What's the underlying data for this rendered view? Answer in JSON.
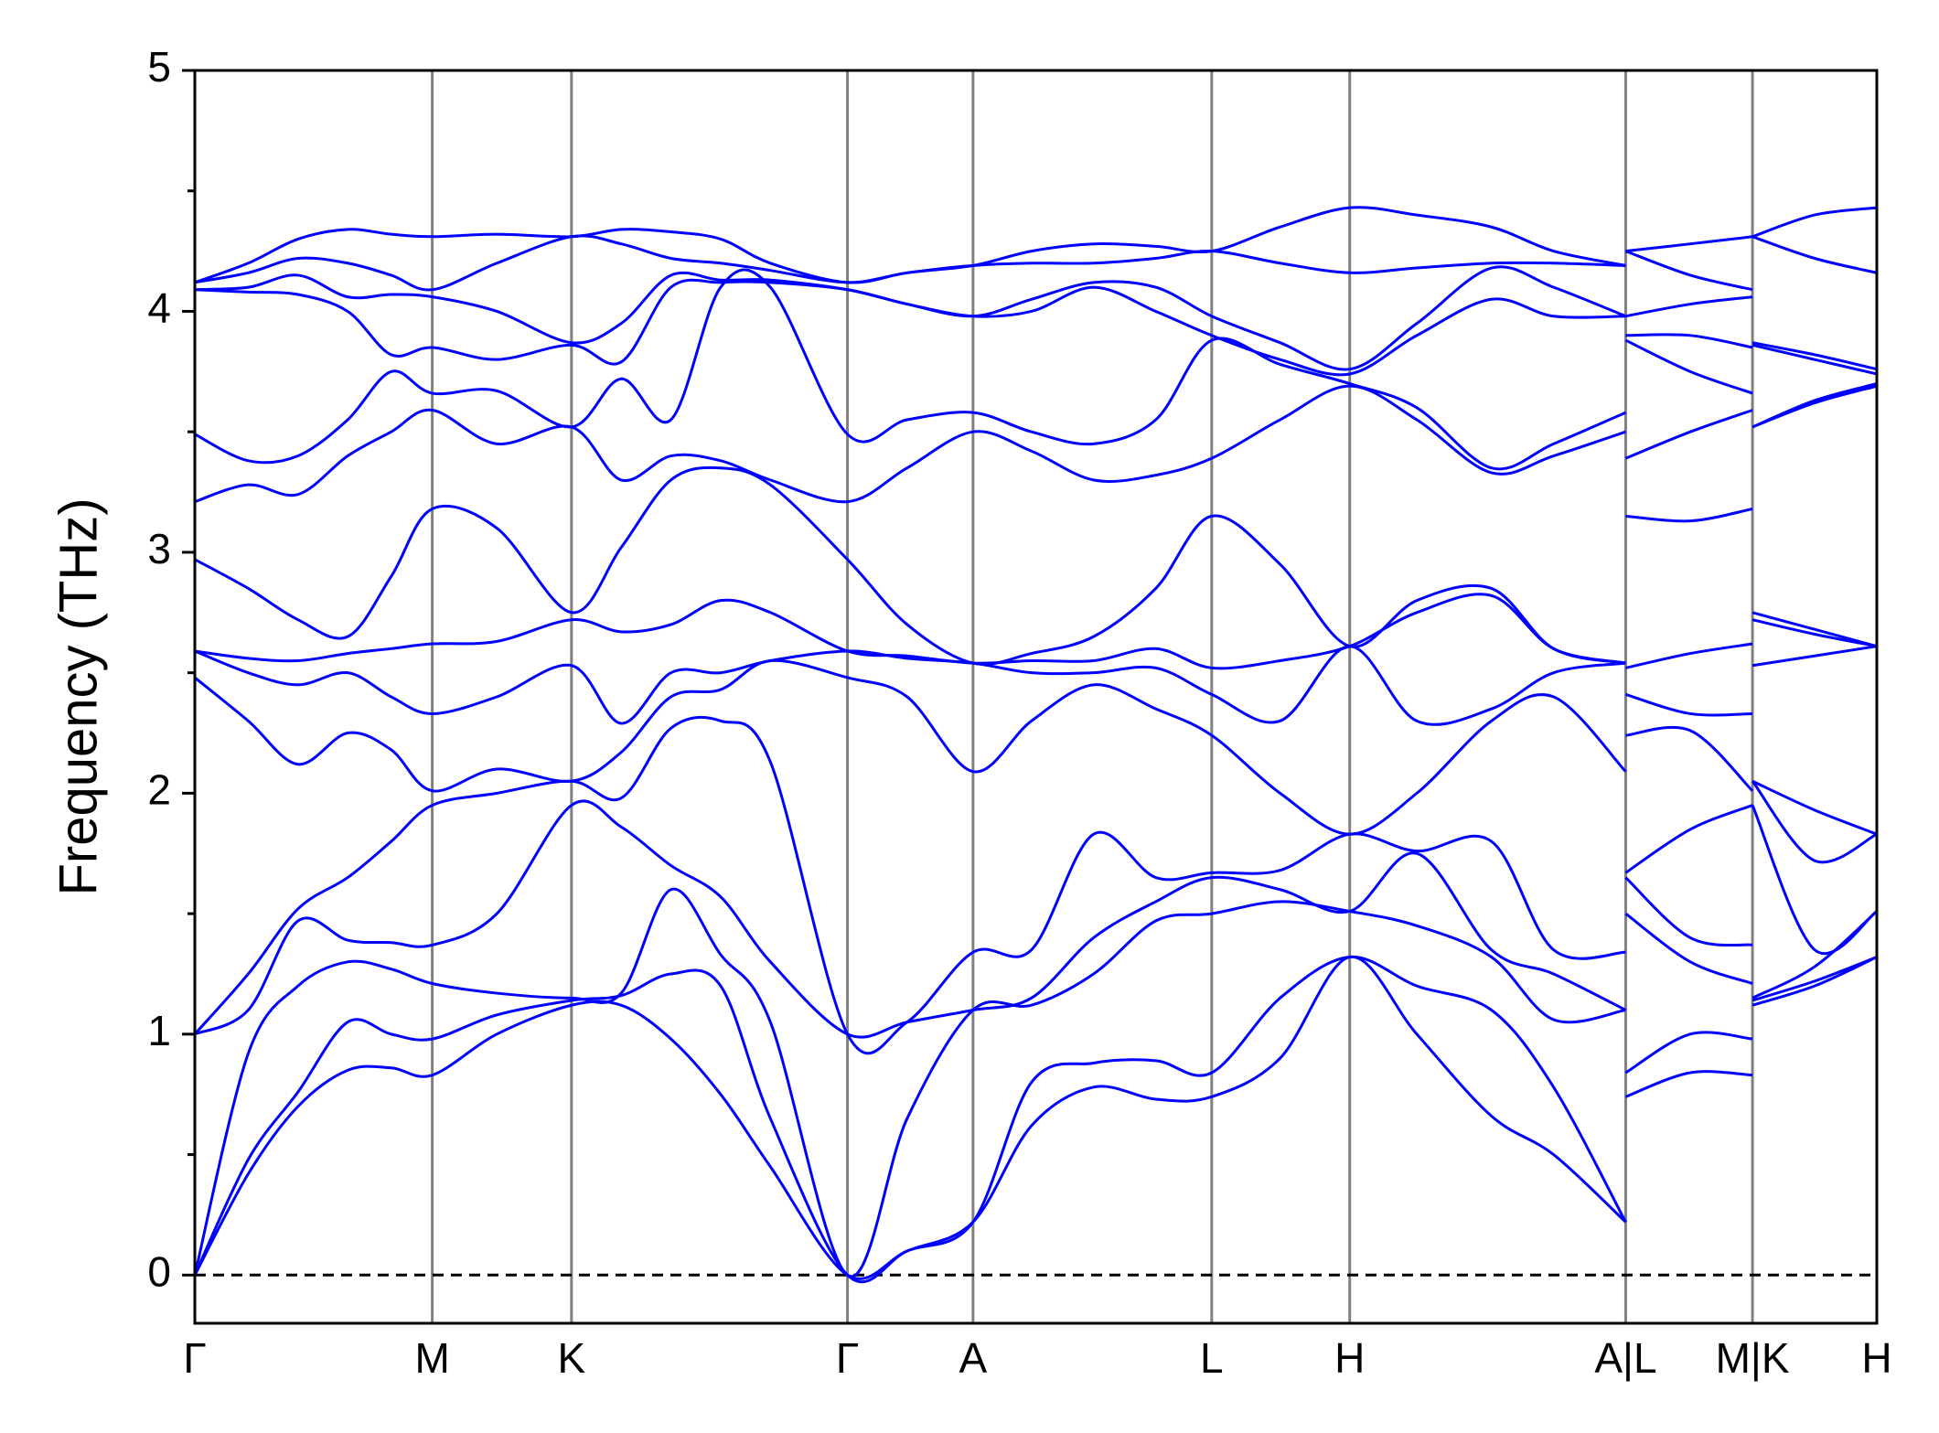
{
  "chart_data": {
    "type": "band",
    "ylabel": "Frequency (THz)",
    "color": "#0000ff",
    "xlim": [
      0,
      13.53
    ],
    "ylim": [
      -0.2,
      5
    ],
    "yticks": [
      0,
      1,
      2,
      3,
      4,
      5
    ],
    "yminorticks": [
      0.5,
      1.5,
      2.5,
      3.5,
      4.5
    ],
    "hline": 0,
    "grid": true,
    "xticks": [
      {
        "value": 0,
        "label": "Γ"
      },
      {
        "value": 1.91,
        "label": "M"
      },
      {
        "value": 3.03,
        "label": "K"
      },
      {
        "value": 5.25,
        "label": "Γ"
      },
      {
        "value": 6.26,
        "label": "A"
      },
      {
        "value": 8.18,
        "label": "L"
      },
      {
        "value": 9.29,
        "label": "H"
      },
      {
        "value": 11.51,
        "label": "A|L"
      },
      {
        "value": 12.53,
        "label": "M|K"
      },
      {
        "value": 13.53,
        "label": "H"
      }
    ],
    "x": [
      0,
      0.43,
      0.83,
      1.23,
      1.58,
      1.91,
      2.43,
      3.03,
      3.43,
      3.83,
      4.23,
      4.63,
      5.25,
      5.73,
      6.26,
      6.73,
      7.23,
      7.73,
      8.18,
      8.73,
      9.29,
      9.83,
      10.43,
      10.93,
      11.51,
      11.51,
      11.51,
      12.03,
      12.53,
      12.53,
      12.53,
      13.03,
      13.53
    ],
    "series": [
      {
        "values": [
          0,
          0.42,
          0.7,
          0.85,
          0.86,
          0.83,
          1.0,
          1.12,
          1.12,
          0.98,
          0.75,
          0.45,
          0,
          0.1,
          0.22,
          0.62,
          0.78,
          0.73,
          0.74,
          0.9,
          1.32,
          1.0,
          0.66,
          0.5,
          0.22,
          null,
          0.74,
          0.84,
          0.83,
          null,
          1.12,
          1.2,
          1.32
        ]
      },
      {
        "values": [
          0,
          0.48,
          0.76,
          1.05,
          1.0,
          0.98,
          1.08,
          1.14,
          1.16,
          1.25,
          1.2,
          0.65,
          0,
          0.1,
          0.22,
          0.8,
          0.88,
          0.89,
          0.84,
          1.15,
          1.32,
          1.2,
          1.1,
          0.78,
          0.22,
          null,
          0.84,
          1.0,
          0.98,
          null,
          1.14,
          1.22,
          1.32
        ]
      },
      {
        "values": [
          0,
          0.92,
          1.2,
          1.3,
          1.27,
          1.21,
          1.17,
          1.15,
          1.17,
          1.6,
          1.33,
          1.05,
          0,
          0.65,
          1.1,
          1.12,
          1.25,
          1.47,
          1.5,
          1.55,
          1.51,
          1.45,
          1.32,
          1.06,
          1.1,
          null,
          1.5,
          1.3,
          1.21,
          null,
          1.15,
          1.28,
          1.51
        ]
      },
      {
        "values": [
          1.0,
          1.1,
          1.47,
          1.39,
          1.38,
          1.37,
          1.5,
          1.95,
          1.86,
          1.7,
          1.57,
          1.3,
          1.0,
          1.05,
          1.1,
          1.15,
          1.4,
          1.55,
          1.65,
          1.6,
          1.51,
          1.75,
          1.35,
          1.25,
          1.1,
          null,
          1.65,
          1.4,
          1.37,
          null,
          1.95,
          1.35,
          1.51
        ]
      },
      {
        "values": [
          1.0,
          1.25,
          1.52,
          1.65,
          1.8,
          1.95,
          2.0,
          2.05,
          1.98,
          2.27,
          2.3,
          2.13,
          1.0,
          1.05,
          1.34,
          1.35,
          1.83,
          1.65,
          1.67,
          1.68,
          1.83,
          1.76,
          1.8,
          1.35,
          1.34,
          null,
          1.67,
          1.85,
          1.95,
          null,
          2.05,
          1.72,
          1.83
        ]
      },
      {
        "values": [
          2.48,
          2.3,
          2.12,
          2.25,
          2.18,
          2.01,
          2.1,
          2.05,
          2.17,
          2.4,
          2.43,
          2.55,
          2.48,
          2.4,
          2.09,
          2.3,
          2.45,
          2.35,
          2.24,
          2.0,
          1.83,
          2.0,
          2.3,
          2.4,
          2.09,
          null,
          2.24,
          2.26,
          2.01,
          null,
          2.05,
          1.93,
          1.83
        ]
      },
      {
        "values": [
          2.59,
          2.5,
          2.45,
          2.5,
          2.4,
          2.33,
          2.4,
          2.53,
          2.29,
          2.5,
          2.5,
          2.55,
          2.59,
          2.56,
          2.54,
          2.5,
          2.5,
          2.52,
          2.41,
          2.3,
          2.61,
          2.3,
          2.35,
          2.5,
          2.54,
          null,
          2.41,
          2.33,
          2.33,
          null,
          2.53,
          2.57,
          2.61
        ]
      },
      {
        "values": [
          2.59,
          2.56,
          2.55,
          2.58,
          2.6,
          2.62,
          2.63,
          2.72,
          2.67,
          2.7,
          2.8,
          2.75,
          2.59,
          2.57,
          2.54,
          2.55,
          2.55,
          2.6,
          2.52,
          2.55,
          2.61,
          2.75,
          2.82,
          2.6,
          2.54,
          null,
          2.52,
          2.58,
          2.62,
          null,
          2.72,
          2.66,
          2.61
        ]
      },
      {
        "values": [
          2.97,
          2.85,
          2.72,
          2.65,
          2.9,
          3.18,
          3.1,
          2.75,
          3.02,
          3.3,
          3.35,
          3.28,
          2.97,
          2.7,
          2.54,
          2.58,
          2.65,
          2.85,
          3.15,
          2.95,
          2.61,
          2.8,
          2.85,
          2.6,
          2.54,
          null,
          3.15,
          3.13,
          3.18,
          null,
          2.75,
          2.68,
          2.61
        ]
      },
      {
        "values": [
          3.21,
          3.28,
          3.24,
          3.4,
          3.5,
          3.59,
          3.45,
          3.52,
          3.3,
          3.4,
          3.38,
          3.3,
          3.21,
          3.35,
          3.5,
          3.42,
          3.3,
          3.32,
          3.39,
          3.55,
          3.69,
          3.55,
          3.33,
          3.4,
          3.5,
          null,
          3.39,
          3.5,
          3.59,
          null,
          3.52,
          3.62,
          3.69
        ]
      },
      {
        "values": [
          3.49,
          3.38,
          3.4,
          3.55,
          3.75,
          3.66,
          3.67,
          3.52,
          3.72,
          3.55,
          4.1,
          4.1,
          3.49,
          3.55,
          3.58,
          3.5,
          3.45,
          3.55,
          3.88,
          3.78,
          3.7,
          3.6,
          3.35,
          3.45,
          3.58,
          null,
          3.88,
          3.75,
          3.66,
          null,
          3.52,
          3.63,
          3.7
        ]
      },
      {
        "values": [
          4.09,
          4.08,
          4.07,
          4.0,
          3.82,
          3.85,
          3.8,
          3.86,
          3.79,
          4.1,
          4.12,
          4.12,
          4.09,
          4.03,
          3.98,
          4.0,
          4.1,
          4.0,
          3.9,
          3.8,
          3.74,
          3.9,
          4.05,
          3.98,
          3.98,
          null,
          3.9,
          3.9,
          3.85,
          null,
          3.86,
          3.8,
          3.74
        ]
      },
      {
        "values": [
          4.09,
          4.1,
          4.15,
          4.06,
          4.07,
          4.06,
          4.0,
          3.87,
          3.95,
          4.15,
          4.13,
          4.13,
          4.09,
          4.03,
          3.98,
          4.05,
          4.12,
          4.1,
          3.98,
          3.87,
          3.76,
          3.95,
          4.18,
          4.1,
          3.98,
          null,
          3.98,
          4.03,
          4.06,
          null,
          3.87,
          3.82,
          3.76
        ]
      },
      {
        "values": [
          4.12,
          4.16,
          4.22,
          4.2,
          4.15,
          4.09,
          4.2,
          4.31,
          4.28,
          4.22,
          4.2,
          4.17,
          4.12,
          4.16,
          4.19,
          4.2,
          4.2,
          4.22,
          4.25,
          4.2,
          4.16,
          4.18,
          4.2,
          4.2,
          4.19,
          null,
          4.25,
          4.15,
          4.09,
          null,
          4.31,
          4.22,
          4.16
        ]
      },
      {
        "values": [
          4.12,
          4.2,
          4.3,
          4.34,
          4.32,
          4.31,
          4.32,
          4.31,
          4.34,
          4.33,
          4.3,
          4.2,
          4.12,
          4.16,
          4.19,
          4.25,
          4.28,
          4.27,
          4.25,
          4.35,
          4.43,
          4.4,
          4.35,
          4.25,
          4.19,
          null,
          4.25,
          4.28,
          4.31,
          null,
          4.31,
          4.4,
          4.43
        ]
      }
    ]
  }
}
